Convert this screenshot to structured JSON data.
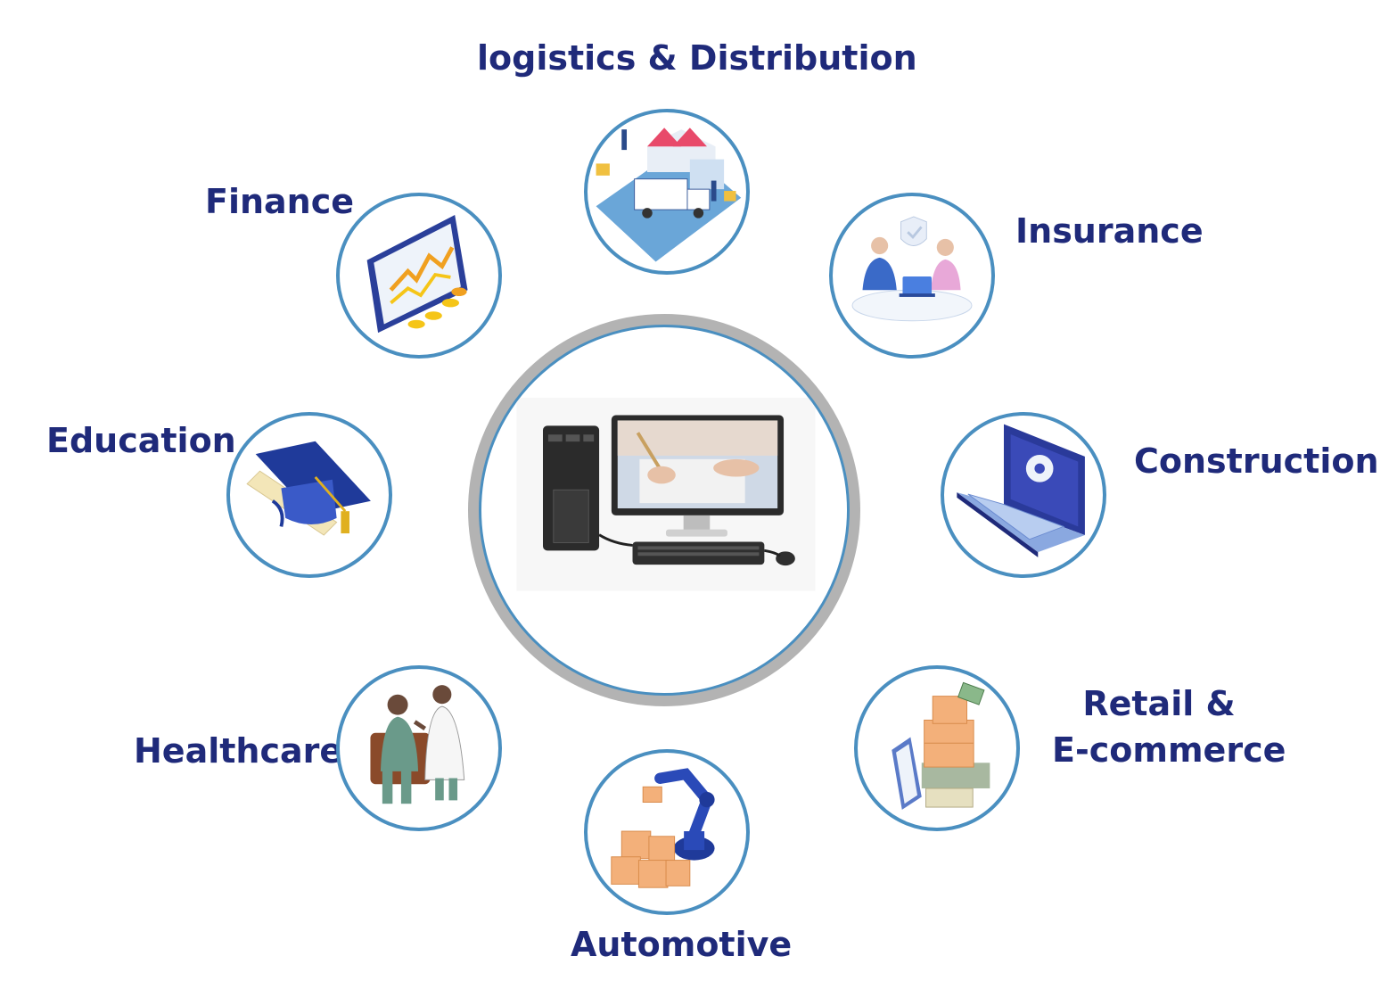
{
  "colors": {
    "label": "#1f2a7a",
    "ring_border": "#4a8fc0",
    "center_ring": "#b3b3b3"
  },
  "center": {
    "icon": "desktop-computer-icon"
  },
  "sectors": {
    "logistics": {
      "label": "logistics & Distribution",
      "icon": "logistics-warehouse-truck-icon"
    },
    "finance": {
      "label": "Finance",
      "icon": "finance-chart-coins-icon"
    },
    "insurance": {
      "label": "Insurance",
      "icon": "insurance-meeting-shield-icon"
    },
    "education": {
      "label": "Education",
      "icon": "graduation-cap-diploma-icon"
    },
    "construction": {
      "label": "Construction",
      "icon": "laptop-gear-icon"
    },
    "healthcare": {
      "label": "Healthcare",
      "icon": "doctor-patient-icon"
    },
    "retail": {
      "label_line1": "Retail &",
      "label_line2": "E-commerce",
      "icon": "boxes-scale-icon"
    },
    "automotive": {
      "label": "Automotive",
      "icon": "robot-arm-boxes-icon"
    }
  }
}
